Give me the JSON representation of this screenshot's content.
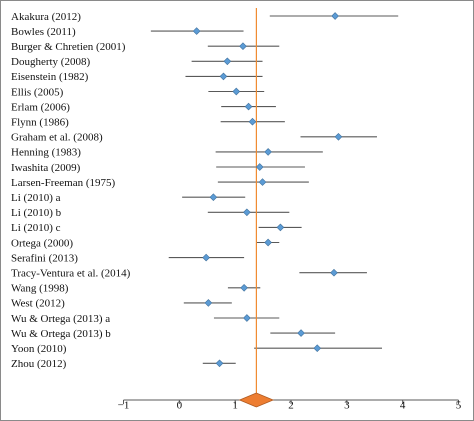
{
  "colors": {
    "point": "#5b9bd5",
    "point_stroke": "#41719c",
    "summary": "#ed7d31",
    "summary_stroke": "#ae5a21",
    "reference_line": "#f08a2e",
    "ci_line": "#595959"
  },
  "chart_data": {
    "type": "forest",
    "title": "",
    "xlabel": "",
    "ylabel": "",
    "xlim": [
      -1,
      5
    ],
    "x_ticks": [
      -1,
      0,
      1,
      2,
      3,
      4,
      5
    ],
    "x_tick_labels": [
      "−1",
      "0",
      "1",
      "2",
      "3",
      "4",
      "5"
    ],
    "reference_line_x": 1.38,
    "summary": {
      "estimate": 1.38,
      "lower": 1.08,
      "upper": 1.68
    },
    "studies": [
      {
        "label": "Akakura (2012)",
        "estimate": 2.79,
        "lower": 1.62,
        "upper": 3.92
      },
      {
        "label": "Bowles (2011)",
        "estimate": 0.31,
        "lower": -0.51,
        "upper": 1.15
      },
      {
        "label": "Burger & Chretien (2001)",
        "estimate": 1.14,
        "lower": 0.51,
        "upper": 1.79
      },
      {
        "label": "Dougherty (2008)",
        "estimate": 0.86,
        "lower": 0.22,
        "upper": 1.49
      },
      {
        "label": "Eisenstein (1982)",
        "estimate": 0.79,
        "lower": 0.11,
        "upper": 1.49
      },
      {
        "label": "Ellis (2005)",
        "estimate": 1.02,
        "lower": 0.52,
        "upper": 1.52
      },
      {
        "label": "Erlam (2006)",
        "estimate": 1.24,
        "lower": 0.75,
        "upper": 1.73
      },
      {
        "label": "Flynn (1986)",
        "estimate": 1.31,
        "lower": 0.74,
        "upper": 1.89
      },
      {
        "label": "Graham et al. (2008)",
        "estimate": 2.85,
        "lower": 2.17,
        "upper": 3.54
      },
      {
        "label": "Henning (1983)",
        "estimate": 1.59,
        "lower": 0.65,
        "upper": 2.57
      },
      {
        "label": "Iwashita (2009)",
        "estimate": 1.44,
        "lower": 0.66,
        "upper": 2.25
      },
      {
        "label": "Larsen-Freeman (1975)",
        "estimate": 1.49,
        "lower": 0.69,
        "upper": 2.32
      },
      {
        "label": "Li (2010) a",
        "estimate": 0.61,
        "lower": 0.05,
        "upper": 1.18
      },
      {
        "label": "Li (2010) b",
        "estimate": 1.21,
        "lower": 0.51,
        "upper": 1.97
      },
      {
        "label": "Li (2010) c",
        "estimate": 1.81,
        "lower": 1.42,
        "upper": 2.19
      },
      {
        "label": "Ortega (2000)",
        "estimate": 1.59,
        "lower": 1.39,
        "upper": 1.79
      },
      {
        "label": "Serafini (2013)",
        "estimate": 0.48,
        "lower": -0.19,
        "upper": 1.16
      },
      {
        "label": "Tracy-Ventura et al. (2014)",
        "estimate": 2.77,
        "lower": 2.15,
        "upper": 3.36
      },
      {
        "label": "Wang (1998)",
        "estimate": 1.16,
        "lower": 0.87,
        "upper": 1.45
      },
      {
        "label": "West (2012)",
        "estimate": 0.52,
        "lower": 0.08,
        "upper": 0.94
      },
      {
        "label": "Wu & Ortega (2013) a",
        "estimate": 1.21,
        "lower": 0.62,
        "upper": 1.79
      },
      {
        "label": "Wu & Ortega (2013) b",
        "estimate": 2.18,
        "lower": 1.63,
        "upper": 2.79
      },
      {
        "label": "Yoon (2010)",
        "estimate": 2.47,
        "lower": 1.34,
        "upper": 3.63
      },
      {
        "label": "Zhou (2012)",
        "estimate": 0.72,
        "lower": 0.42,
        "upper": 1.01
      }
    ]
  }
}
